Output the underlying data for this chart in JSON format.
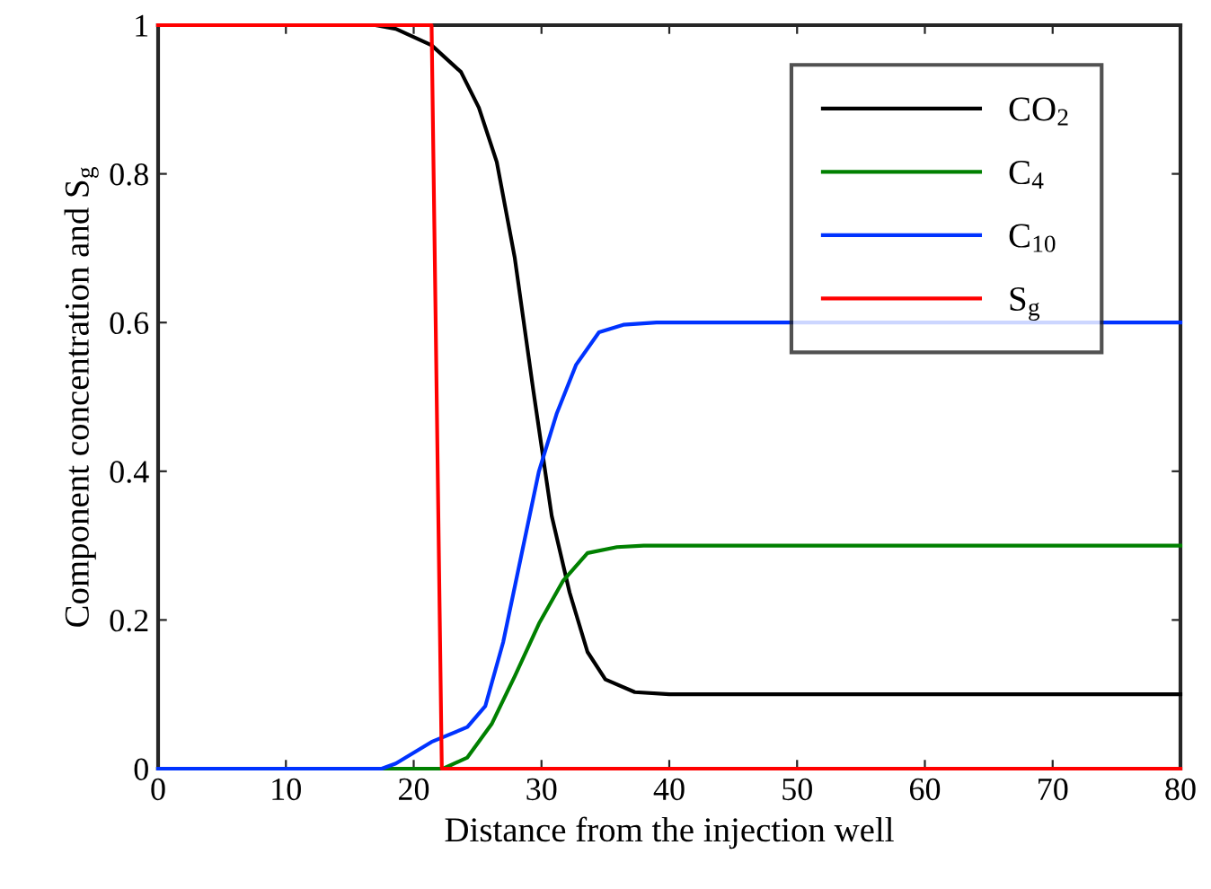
{
  "chart_data": {
    "type": "line",
    "xlabel": "Distance from the injection well",
    "ylabel": "Component concentration and S$_{g}$",
    "xlim": [
      0,
      80
    ],
    "ylim": [
      0,
      1
    ],
    "xticks": [
      0,
      10,
      20,
      30,
      40,
      50,
      60,
      70,
      80
    ],
    "yticks": [
      0,
      0.2,
      0.4,
      0.6,
      0.8,
      1
    ],
    "grid": false,
    "legend": "top right",
    "marker": "none",
    "line_style": "solid",
    "series": [
      {
        "name": "CO$_{2}$",
        "color": "#000000",
        "x": [
          0,
          17,
          18.6,
          21.4,
          23.7,
          25.1,
          26.5,
          27.9,
          29.35,
          30.8,
          32.2,
          33.6,
          35,
          37.3,
          40,
          80
        ],
        "values": [
          1,
          1,
          0.995,
          0.973,
          0.937,
          0.889,
          0.816,
          0.688,
          0.51,
          0.34,
          0.237,
          0.157,
          0.12,
          0.103,
          0.1,
          0.1
        ]
      },
      {
        "name": "C$_{4}$",
        "color": "#008000",
        "x": [
          0,
          22.3,
          24.2,
          26.1,
          27.9,
          29.8,
          31.7,
          33.6,
          35.9,
          38,
          80
        ],
        "values": [
          0,
          0,
          0.015,
          0.06,
          0.124,
          0.195,
          0.253,
          0.29,
          0.298,
          0.3,
          0.3
        ]
      },
      {
        "name": "C$_{10}$",
        "color": "#0033ff",
        "x": [
          0,
          17.5,
          18.6,
          21.4,
          24.2,
          25.6,
          27,
          28.4,
          29.8,
          31.2,
          32.7,
          34.5,
          36.4,
          39,
          80
        ],
        "values": [
          0,
          0,
          0.007,
          0.036,
          0.056,
          0.084,
          0.17,
          0.285,
          0.4,
          0.478,
          0.543,
          0.587,
          0.597,
          0.6,
          0.6
        ]
      },
      {
        "name": "S$_{g}$",
        "color": "#ff0000",
        "x": [
          0,
          21.4,
          22.2,
          80
        ],
        "values": [
          1,
          1,
          0,
          0
        ]
      }
    ]
  }
}
